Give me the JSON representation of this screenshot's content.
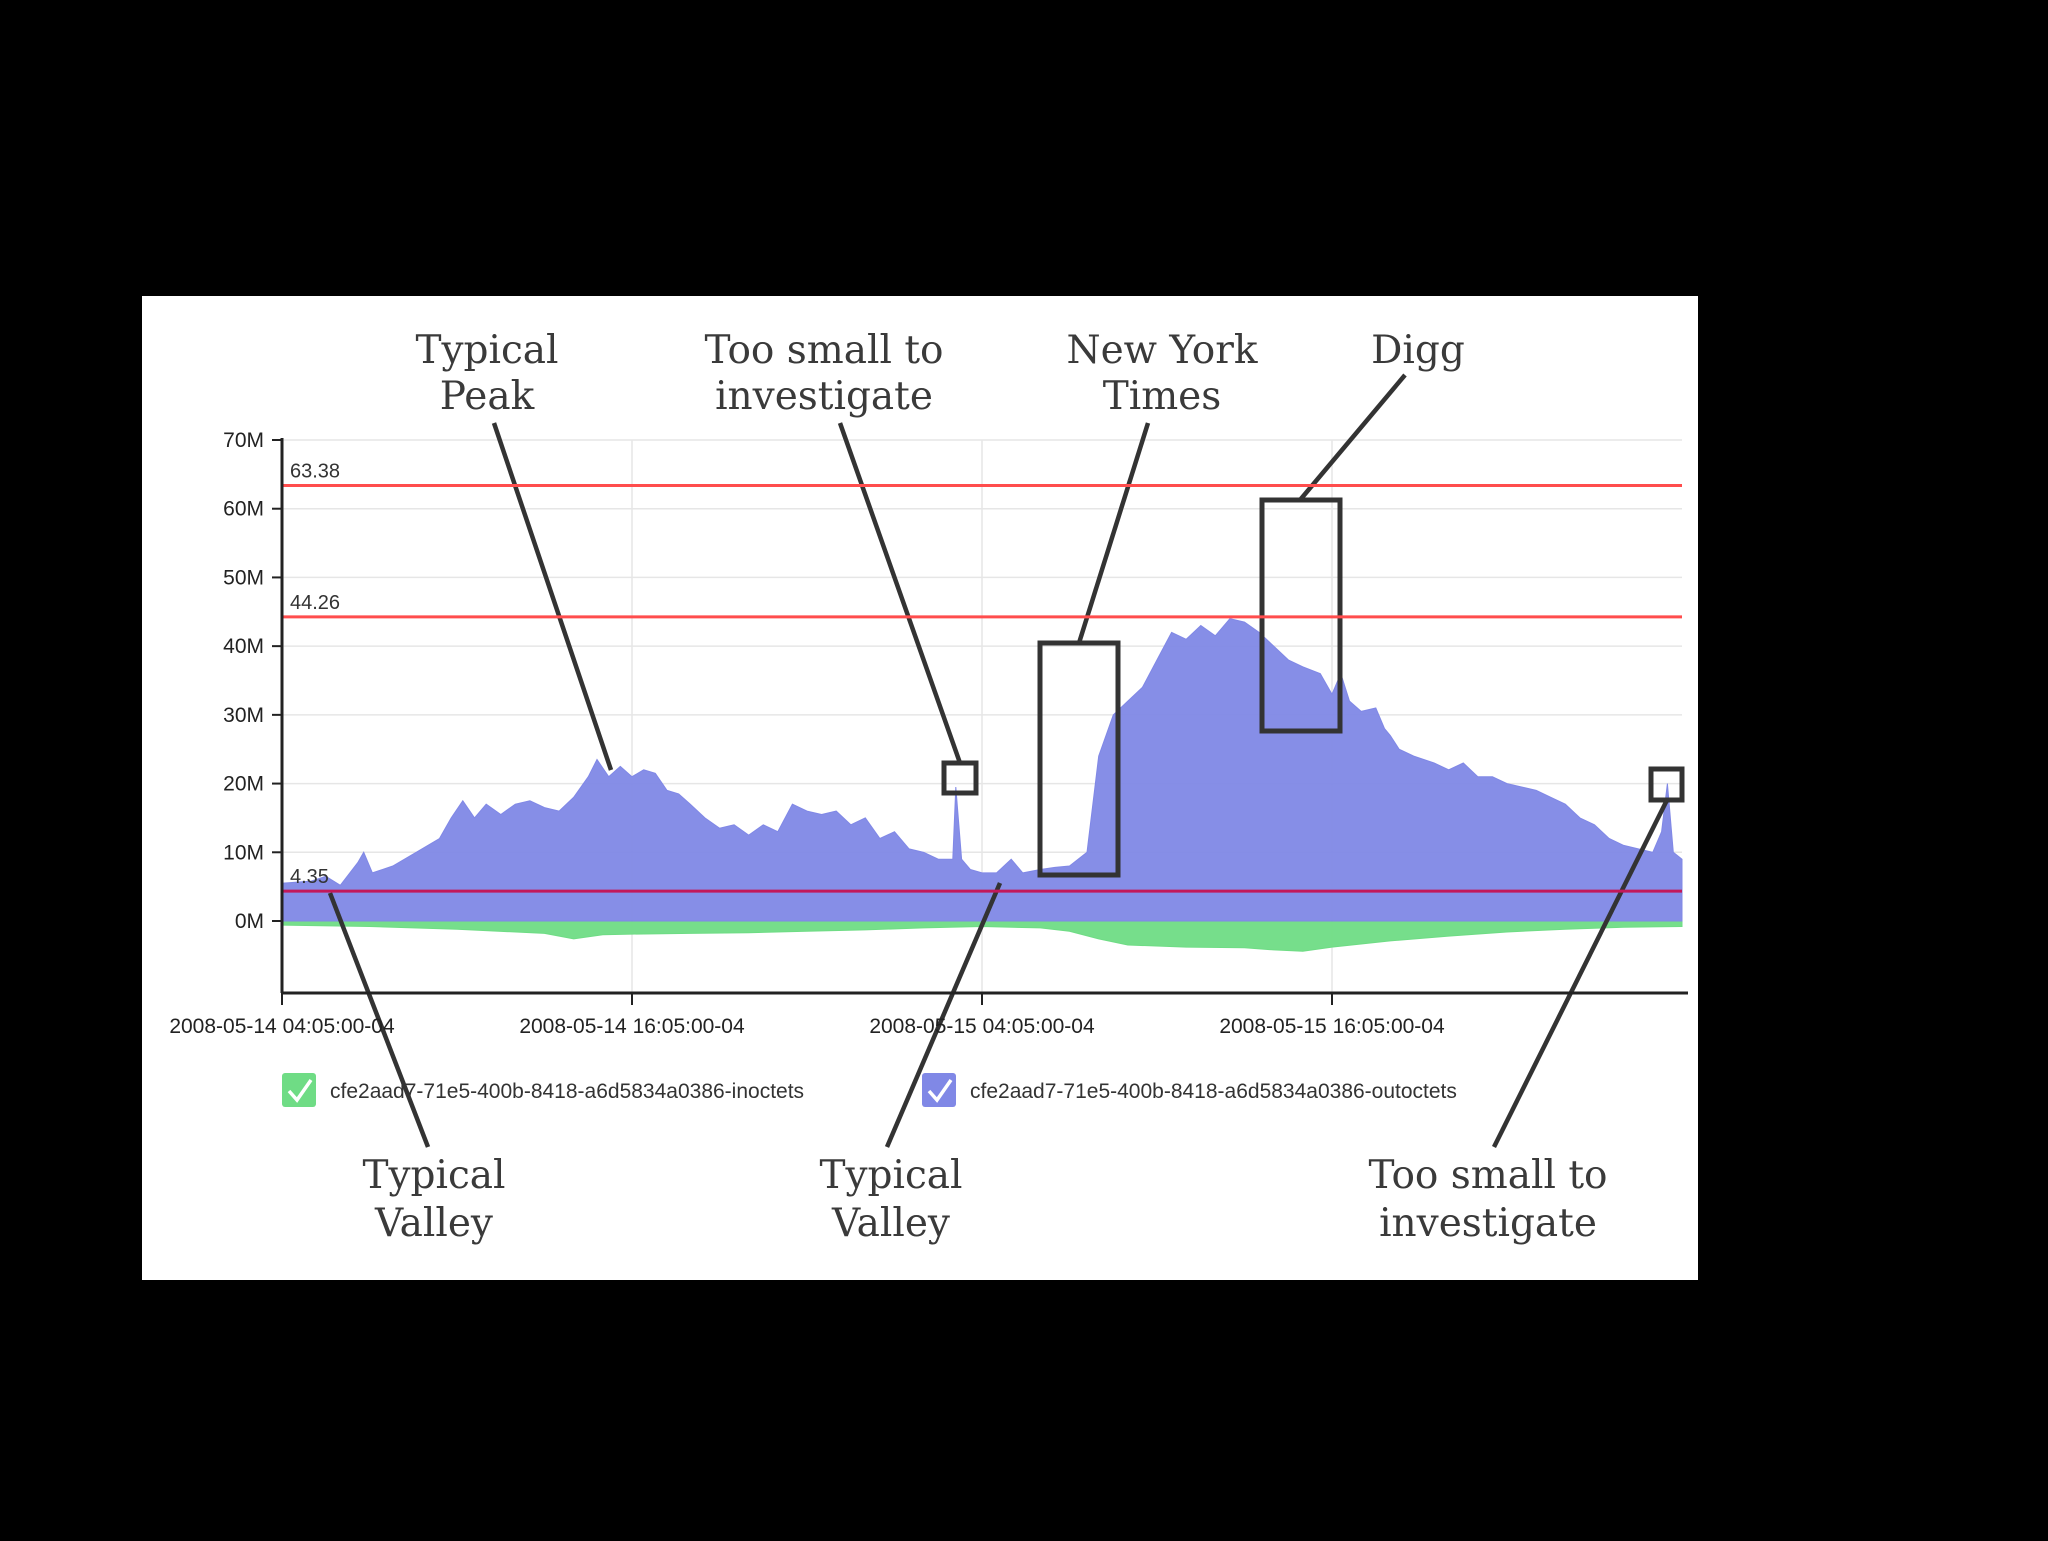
{
  "chart_data": {
    "type": "area",
    "y_ticks": [
      "70M",
      "60M",
      "50M",
      "40M",
      "30M",
      "20M",
      "10M",
      "0M"
    ],
    "x_ticks": [
      "2008-05-14 04:05:00-04",
      "2008-05-14 16:05:00-04",
      "2008-05-15 04:05:00-04",
      "2008-05-15 16:05:00-04"
    ],
    "x_tick_hours": [
      0,
      12,
      24,
      36
    ],
    "x_range_hours": [
      0,
      48
    ],
    "ylim": [
      -10,
      70
    ],
    "grid": true,
    "legend_position": "bottom",
    "reference_lines": [
      {
        "label": "63.38",
        "value": 63.38,
        "color": "#ff4d4d"
      },
      {
        "label": "44.26",
        "value": 44.26,
        "color": "#ff4d4d"
      },
      {
        "label": "4.35",
        "value": 4.35,
        "color": "#c2185b"
      }
    ],
    "series": [
      {
        "name": "cfe2aad7-71e5-400b-8418-a6d5834a0386-inoctets",
        "color": "#6fdc85",
        "points": [
          [
            0,
            -0.6
          ],
          [
            3,
            -0.8
          ],
          [
            6,
            -1.2
          ],
          [
            9,
            -1.8
          ],
          [
            10,
            -2.6
          ],
          [
            11,
            -2.0
          ],
          [
            12,
            -1.9
          ],
          [
            14,
            -1.8
          ],
          [
            16,
            -1.7
          ],
          [
            18,
            -1.5
          ],
          [
            20,
            -1.3
          ],
          [
            22,
            -1.0
          ],
          [
            24,
            -0.8
          ],
          [
            26,
            -1.0
          ],
          [
            27,
            -1.5
          ],
          [
            28,
            -2.6
          ],
          [
            29,
            -3.5
          ],
          [
            31,
            -3.8
          ],
          [
            33,
            -3.9
          ],
          [
            34,
            -4.2
          ],
          [
            35,
            -4.4
          ],
          [
            36,
            -3.8
          ],
          [
            38,
            -2.9
          ],
          [
            40,
            -2.2
          ],
          [
            42,
            -1.6
          ],
          [
            44,
            -1.2
          ],
          [
            46,
            -0.9
          ],
          [
            48,
            -0.8
          ]
        ]
      },
      {
        "name": "cfe2aad7-71e5-400b-8418-a6d5834a0386-outoctets",
        "color": "#8088e6",
        "points": [
          [
            0,
            5.5
          ],
          [
            1,
            5.8
          ],
          [
            1.5,
            6.5
          ],
          [
            2,
            5.2
          ],
          [
            2.6,
            8.5
          ],
          [
            2.8,
            10
          ],
          [
            3.1,
            7
          ],
          [
            3.8,
            8
          ],
          [
            4.6,
            10
          ],
          [
            5.4,
            12
          ],
          [
            5.8,
            15
          ],
          [
            6.2,
            17.5
          ],
          [
            6.6,
            15
          ],
          [
            7,
            17
          ],
          [
            7.5,
            15.5
          ],
          [
            8,
            17
          ],
          [
            8.5,
            17.5
          ],
          [
            9,
            16.5
          ],
          [
            9.5,
            16
          ],
          [
            10,
            18
          ],
          [
            10.5,
            21
          ],
          [
            10.8,
            23.5
          ],
          [
            11.2,
            21
          ],
          [
            11.6,
            22.5
          ],
          [
            12,
            21
          ],
          [
            12.4,
            22
          ],
          [
            12.8,
            21.5
          ],
          [
            13.2,
            19
          ],
          [
            13.6,
            18.5
          ],
          [
            14,
            17
          ],
          [
            14.5,
            15
          ],
          [
            15,
            13.5
          ],
          [
            15.5,
            14
          ],
          [
            16,
            12.5
          ],
          [
            16.5,
            14
          ],
          [
            17,
            13
          ],
          [
            17.5,
            17
          ],
          [
            18,
            16
          ],
          [
            18.5,
            15.5
          ],
          [
            19,
            16
          ],
          [
            19.5,
            14
          ],
          [
            20,
            15
          ],
          [
            20.5,
            12
          ],
          [
            21,
            13
          ],
          [
            21.5,
            10.5
          ],
          [
            22,
            10
          ],
          [
            22.5,
            9
          ],
          [
            23,
            9
          ],
          [
            23.1,
            19.5
          ],
          [
            23.3,
            9
          ],
          [
            23.6,
            7.5
          ],
          [
            24,
            7
          ],
          [
            24.5,
            7
          ],
          [
            25,
            9
          ],
          [
            25.4,
            7
          ],
          [
            26,
            7.5
          ],
          [
            26.5,
            7.8
          ],
          [
            27,
            8
          ],
          [
            27.6,
            10
          ],
          [
            28,
            24
          ],
          [
            28.5,
            30
          ],
          [
            29,
            32
          ],
          [
            29.5,
            34
          ],
          [
            30,
            38
          ],
          [
            30.5,
            42
          ],
          [
            31,
            41
          ],
          [
            31.5,
            43
          ],
          [
            32,
            41.5
          ],
          [
            32.5,
            44
          ],
          [
            33,
            43.5
          ],
          [
            33.5,
            42
          ],
          [
            34,
            40
          ],
          [
            34.5,
            38
          ],
          [
            35,
            37
          ],
          [
            35.6,
            36
          ],
          [
            36,
            33
          ],
          [
            36.3,
            36
          ],
          [
            36.6,
            32
          ],
          [
            37,
            30.5
          ],
          [
            37.5,
            31
          ],
          [
            37.8,
            28
          ],
          [
            38,
            27
          ],
          [
            38.3,
            25
          ],
          [
            38.8,
            24
          ],
          [
            39.5,
            23
          ],
          [
            40,
            22
          ],
          [
            40.5,
            23
          ],
          [
            41,
            21
          ],
          [
            41.5,
            21
          ],
          [
            42,
            20
          ],
          [
            42.5,
            19.5
          ],
          [
            43,
            19
          ],
          [
            43.5,
            18
          ],
          [
            44,
            17
          ],
          [
            44.5,
            15
          ],
          [
            45,
            14
          ],
          [
            45.5,
            12
          ],
          [
            46,
            11
          ],
          [
            46.5,
            10.5
          ],
          [
            47,
            10
          ],
          [
            47.3,
            13
          ],
          [
            47.5,
            20
          ],
          [
            47.7,
            10
          ],
          [
            48,
            9
          ]
        ]
      }
    ]
  },
  "annotations": {
    "typical_peak": [
      "Typical",
      "Peak"
    ],
    "too_small_top": [
      "Too small to",
      "investigate"
    ],
    "nyt": [
      "New York",
      "Times"
    ],
    "digg": [
      "Digg"
    ],
    "typical_valley_left": [
      "Typical",
      "Valley"
    ],
    "typical_valley_mid": [
      "Typical",
      "Valley"
    ],
    "too_small_bottom": [
      "Too small to",
      "investigate"
    ]
  }
}
